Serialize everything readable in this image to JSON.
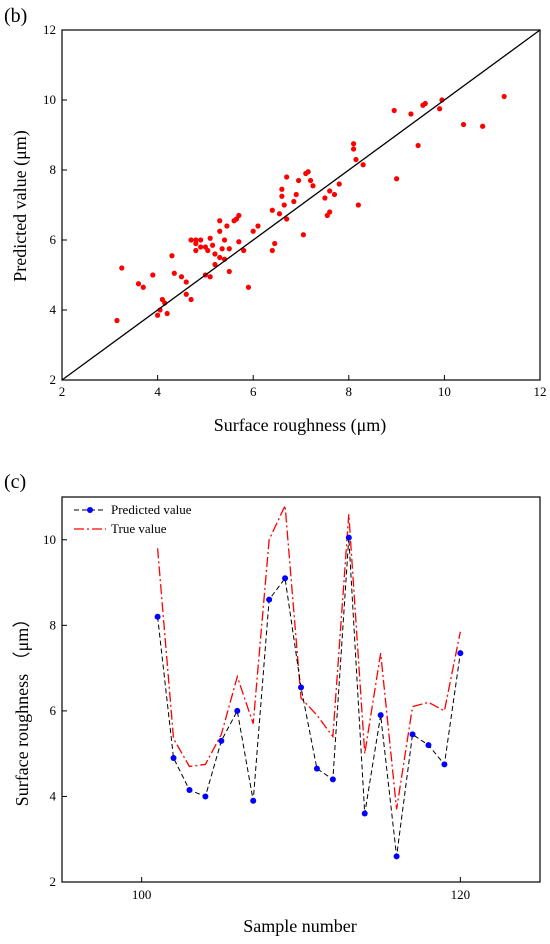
{
  "chart_data": [
    {
      "type": "scatter",
      "panel_label": "(b)",
      "xlabel": "Surface roughness (μm)",
      "ylabel": "Predicted value (μm)",
      "xlim": [
        2,
        12
      ],
      "ylim": [
        2,
        12
      ],
      "xticks": [
        2,
        4,
        6,
        8,
        10,
        12
      ],
      "yticks": [
        2,
        4,
        6,
        8,
        10,
        12
      ],
      "grid": false,
      "reference_line": [
        [
          2,
          2
        ],
        [
          12,
          12
        ]
      ],
      "point_color": "#ff0000",
      "line_color": "#000000",
      "points": [
        [
          3.15,
          3.7
        ],
        [
          3.25,
          5.2
        ],
        [
          3.6,
          4.75
        ],
        [
          3.7,
          4.65
        ],
        [
          3.9,
          5.0
        ],
        [
          4.0,
          3.85
        ],
        [
          4.05,
          4.0
        ],
        [
          4.1,
          4.3
        ],
        [
          4.15,
          4.2
        ],
        [
          4.2,
          3.9
        ],
        [
          4.3,
          5.55
        ],
        [
          4.35,
          5.05
        ],
        [
          4.5,
          4.95
        ],
        [
          4.6,
          4.8
        ],
        [
          4.6,
          4.45
        ],
        [
          4.7,
          4.3
        ],
        [
          4.7,
          6.0
        ],
        [
          4.8,
          5.7
        ],
        [
          4.8,
          5.9
        ],
        [
          4.8,
          6.0
        ],
        [
          4.9,
          5.8
        ],
        [
          4.9,
          6.0
        ],
        [
          5.0,
          5.8
        ],
        [
          5.0,
          5.0
        ],
        [
          5.05,
          5.7
        ],
        [
          5.1,
          6.05
        ],
        [
          5.1,
          4.95
        ],
        [
          5.15,
          5.85
        ],
        [
          5.2,
          5.3
        ],
        [
          5.2,
          5.6
        ],
        [
          5.3,
          5.5
        ],
        [
          5.3,
          6.25
        ],
        [
          5.3,
          6.55
        ],
        [
          5.35,
          5.75
        ],
        [
          5.4,
          6.0
        ],
        [
          5.4,
          5.45
        ],
        [
          5.45,
          6.4
        ],
        [
          5.5,
          5.75
        ],
        [
          5.5,
          5.1
        ],
        [
          5.6,
          6.55
        ],
        [
          5.65,
          6.6
        ],
        [
          5.7,
          6.7
        ],
        [
          5.7,
          5.95
        ],
        [
          5.8,
          5.7
        ],
        [
          5.9,
          4.65
        ],
        [
          6.0,
          6.25
        ],
        [
          6.1,
          6.4
        ],
        [
          6.4,
          6.85
        ],
        [
          6.4,
          5.7
        ],
        [
          6.45,
          5.9
        ],
        [
          6.55,
          6.75
        ],
        [
          6.6,
          7.25
        ],
        [
          6.6,
          7.45
        ],
        [
          6.65,
          7.0
        ],
        [
          6.7,
          6.6
        ],
        [
          6.7,
          7.8
        ],
        [
          6.85,
          7.1
        ],
        [
          6.9,
          7.3
        ],
        [
          6.95,
          7.7
        ],
        [
          7.05,
          6.15
        ],
        [
          7.1,
          7.9
        ],
        [
          7.15,
          7.95
        ],
        [
          7.2,
          7.7
        ],
        [
          7.25,
          7.55
        ],
        [
          7.5,
          7.2
        ],
        [
          7.55,
          6.7
        ],
        [
          7.6,
          6.8
        ],
        [
          7.6,
          7.4
        ],
        [
          7.7,
          7.3
        ],
        [
          7.8,
          7.6
        ],
        [
          8.1,
          8.75
        ],
        [
          8.1,
          8.6
        ],
        [
          8.15,
          8.3
        ],
        [
          8.2,
          7.0
        ],
        [
          8.3,
          8.15
        ],
        [
          8.95,
          9.7
        ],
        [
          9.0,
          7.75
        ],
        [
          9.3,
          9.6
        ],
        [
          9.45,
          8.7
        ],
        [
          9.55,
          9.85
        ],
        [
          9.6,
          9.9
        ],
        [
          9.9,
          9.75
        ],
        [
          9.95,
          10.0
        ],
        [
          10.4,
          9.3
        ],
        [
          10.8,
          9.25
        ],
        [
          11.25,
          10.1
        ]
      ]
    },
    {
      "type": "line",
      "panel_label": "(c)",
      "xlabel": "Sample number",
      "ylabel": "Surface roughness （μm）",
      "xlim": [
        95,
        125
      ],
      "ylim": [
        2,
        11
      ],
      "xticks": [
        100,
        120
      ],
      "yticks": [
        2,
        4,
        6,
        8,
        10
      ],
      "grid": false,
      "legend_position": "top-left",
      "x": [
        101,
        102,
        103,
        104,
        105,
        106,
        107,
        108,
        109,
        110,
        111,
        112,
        113,
        114,
        115,
        116,
        117,
        118,
        119,
        120
      ],
      "series": [
        {
          "name": "Predicted value",
          "color": "#0000ff",
          "line_color": "#000000",
          "style": "dashed-markers",
          "values": [
            8.2,
            4.9,
            4.15,
            4.0,
            5.3,
            6.0,
            3.9,
            8.6,
            9.1,
            6.55,
            4.65,
            4.4,
            10.05,
            3.6,
            5.9,
            2.6,
            5.45,
            5.2,
            4.75,
            7.35
          ]
        },
        {
          "name": "True value",
          "color": "#ff0000",
          "style": "dash-dot",
          "values": [
            9.8,
            5.35,
            4.7,
            4.75,
            5.45,
            6.8,
            5.7,
            10.0,
            10.8,
            6.3,
            5.9,
            5.4,
            10.6,
            5.0,
            7.35,
            3.7,
            6.1,
            6.2,
            6.0,
            7.85
          ]
        }
      ]
    }
  ]
}
